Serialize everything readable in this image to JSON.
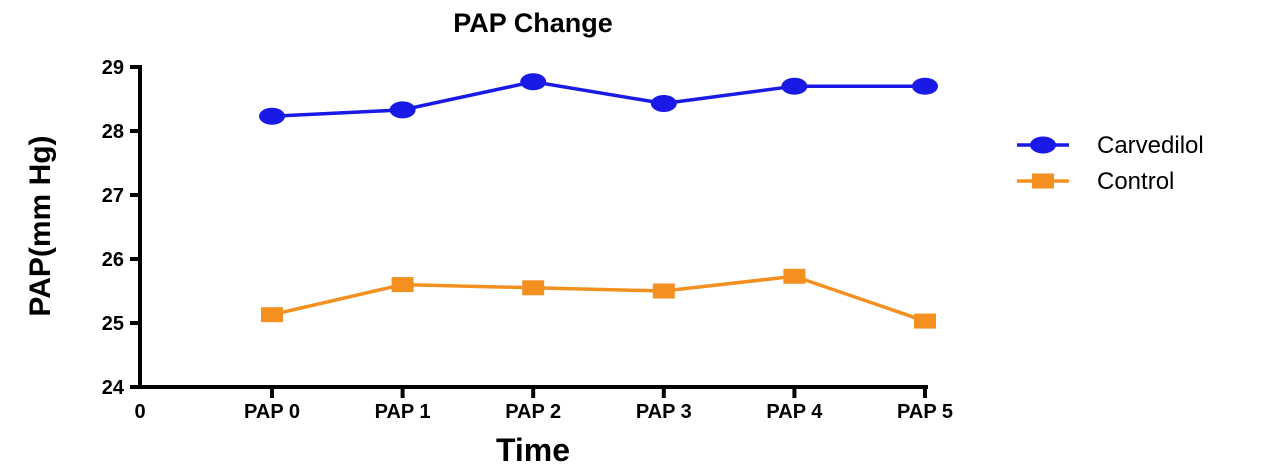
{
  "chart_data": {
    "type": "line",
    "title": "PAP Change",
    "xlabel": "Time",
    "ylabel": "PAP(mm Hg)",
    "categories": [
      "PAP 0",
      "PAP 1",
      "PAP 2",
      "PAP 3",
      "PAP 4",
      "PAP 5"
    ],
    "x_origin_label": "0",
    "ylim": [
      24,
      29
    ],
    "yticks": [
      "24",
      "25",
      "26",
      "27",
      "28",
      "29"
    ],
    "grid": false,
    "legend_position": "right",
    "series": [
      {
        "name": "Carvedilol",
        "marker": "circle",
        "color": "#1a1ae6",
        "values": [
          28.23,
          28.33,
          28.77,
          28.43,
          28.7,
          28.7
        ]
      },
      {
        "name": "Control",
        "marker": "square",
        "color": "#f39020",
        "values": [
          25.13,
          25.6,
          25.55,
          25.5,
          25.73,
          25.03
        ]
      }
    ]
  }
}
